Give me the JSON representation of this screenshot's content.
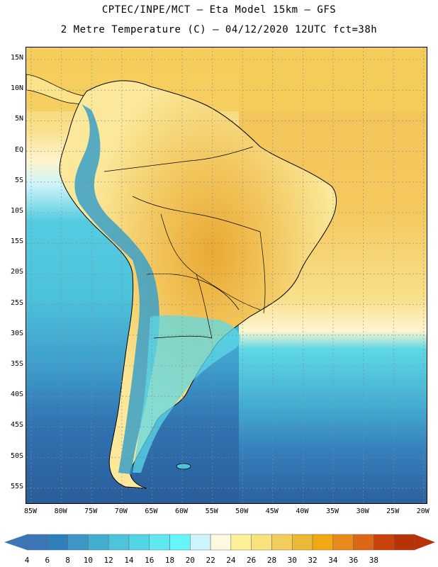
{
  "header": {
    "line1": "CPTEC/INPE/MCT  –  Eta Model 15km – GFS",
    "line2": "2 Metre Temperature (C) – 04/12/2020 12UTC fct=38h"
  },
  "map": {
    "lat_labels": [
      "15N",
      "10N",
      "5N",
      "EQ",
      "5S",
      "10S",
      "15S",
      "20S",
      "25S",
      "30S",
      "35S",
      "40S",
      "45S",
      "50S",
      "55S"
    ],
    "lon_labels": [
      "85W",
      "80W",
      "75W",
      "70W",
      "65W",
      "60W",
      "55W",
      "50W",
      "45W",
      "40W",
      "35W",
      "30W",
      "25W",
      "20W"
    ],
    "region": "South America"
  },
  "colorbar": {
    "levels": [
      "4",
      "6",
      "8",
      "10",
      "12",
      "14",
      "16",
      "18",
      "20",
      "22",
      "24",
      "26",
      "28",
      "30",
      "32",
      "34",
      "36",
      "38"
    ],
    "colors": [
      "#3c76b6",
      "#2f7fbd",
      "#3c96c8",
      "#44aed2",
      "#4cc4da",
      "#52d6e6",
      "#5ee8f0",
      "#66f6fa",
      "#cdf4fb",
      "#fdf8e0",
      "#fdf29a",
      "#f8e27c",
      "#f2cd5c",
      "#edb935",
      "#f2a812",
      "#e88a1c",
      "#dd6614",
      "#c9420a",
      "#b83208"
    ]
  },
  "colors": {
    "ocean_cold": "#2c5f9e",
    "ocean_cool": "#4aaed0",
    "ocean_mild": "#5ed8e6",
    "ocean_warm": "#f2c35a",
    "land_warm": "#f0b84a",
    "land_mild": "#fbe58a",
    "andes": "#3aa0c8"
  }
}
